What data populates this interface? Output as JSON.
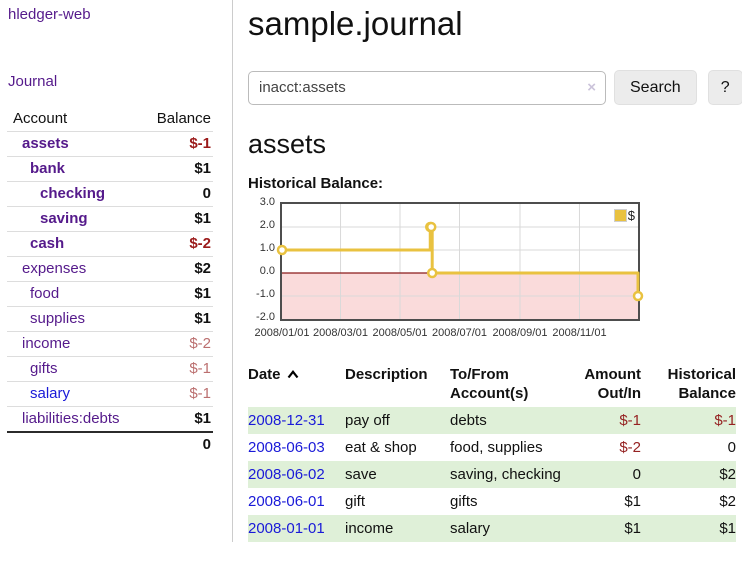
{
  "app": {
    "brand": "hledger-web"
  },
  "colors": {
    "link_purple": "#551a8b",
    "link_blue": "#1a1ad8",
    "negative_strong": "#9b1a1a",
    "negative_soft": "#bb6f6f",
    "row_shade_green": "#dff0d8",
    "chart_line_yellow": "#e9c240",
    "chart_negative_fill": "#fadbdb",
    "chart_zero_line": "#8b1a1a"
  },
  "sidebar": {
    "journal_link": "Journal",
    "account_header": "Account",
    "balance_header": "Balance",
    "accounts": [
      {
        "name": "assets",
        "depth": 1,
        "bold": true,
        "balance": "$-1",
        "neg": "strong"
      },
      {
        "name": "bank",
        "depth": 2,
        "bold": true,
        "balance": "$1",
        "neg": "none"
      },
      {
        "name": "checking",
        "depth": 3,
        "bold": true,
        "balance": "0",
        "neg": "none"
      },
      {
        "name": "saving",
        "depth": 3,
        "bold": true,
        "balance": "$1",
        "neg": "none"
      },
      {
        "name": "cash",
        "depth": 2,
        "bold": true,
        "balance": "$-2",
        "neg": "strong"
      },
      {
        "name": "expenses",
        "depth": 1,
        "bold": false,
        "balance": "$2",
        "neg": "none"
      },
      {
        "name": "food",
        "depth": 2,
        "bold": false,
        "balance": "$1",
        "neg": "none"
      },
      {
        "name": "supplies",
        "depth": 2,
        "bold": false,
        "balance": "$1",
        "neg": "none"
      },
      {
        "name": "income",
        "depth": 1,
        "bold": false,
        "balance": "$-2",
        "neg": "soft"
      },
      {
        "name": "gifts",
        "depth": 2,
        "bold": false,
        "balance": "$-1",
        "neg": "soft"
      },
      {
        "name": "salary",
        "depth": 2,
        "bold": false,
        "balance": "$-1",
        "neg": "soft",
        "link_color": "blue"
      },
      {
        "name": "liabilities:debts",
        "depth": 1,
        "bold": false,
        "balance": "$1",
        "neg": "none"
      }
    ],
    "total": "0"
  },
  "header": {
    "title": "sample.journal"
  },
  "search": {
    "value": "inacct:assets",
    "clear_icon": "×",
    "button_label": "Search",
    "help_label": "?"
  },
  "register": {
    "heading": "assets",
    "chart_label": "Historical Balance:",
    "columns": [
      "Date",
      "Description",
      "To/From Account(s)",
      "Amount Out/In",
      "Historical Balance"
    ],
    "sort_column": "Date",
    "sort_direction": "ascending",
    "rows": [
      {
        "date": "2008-12-31",
        "description": "pay off",
        "accounts": "debts",
        "amount": "$-1",
        "amount_neg": true,
        "balance": "$-1",
        "balance_neg": true,
        "shaded": true
      },
      {
        "date": "2008-06-03",
        "description": "eat & shop",
        "accounts": "food, supplies",
        "amount": "$-2",
        "amount_neg": true,
        "balance": "0",
        "balance_neg": false,
        "shaded": false
      },
      {
        "date": "2008-06-02",
        "description": "save",
        "accounts": "saving, checking",
        "amount": "0",
        "amount_neg": false,
        "balance": "$2",
        "balance_neg": false,
        "shaded": true
      },
      {
        "date": "2008-06-01",
        "description": "gift",
        "accounts": "gifts",
        "amount": "$1",
        "amount_neg": false,
        "balance": "$2",
        "balance_neg": false,
        "shaded": false
      },
      {
        "date": "2008-01-01",
        "description": "income",
        "accounts": "salary",
        "amount": "$1",
        "amount_neg": false,
        "balance": "$1",
        "balance_neg": false,
        "shaded": true
      }
    ]
  },
  "chart_data": {
    "type": "line",
    "step": true,
    "title": "Historical Balance:",
    "series": [
      {
        "name": "$",
        "color": "#e9c240",
        "points": [
          [
            "2008-01-01",
            1
          ],
          [
            "2008-06-01",
            2
          ],
          [
            "2008-06-02",
            2
          ],
          [
            "2008-06-03",
            0
          ],
          [
            "2008-12-31",
            -1
          ]
        ]
      }
    ],
    "x_domain": [
      "2008-01-01",
      "2008-12-31"
    ],
    "x_ticks": [
      "2008/01/01",
      "2008/03/01",
      "2008/05/01",
      "2008/07/01",
      "2008/09/01",
      "2008/11/01"
    ],
    "y_ticks": [
      3.0,
      2.0,
      1.0,
      0.0,
      -1.0,
      -2.0
    ],
    "ylim": [
      -2,
      3
    ],
    "grid": true,
    "legend_position": "top-right",
    "negative_region_color": "#fadbdb",
    "zero_line_color": "#8b1a1a"
  }
}
